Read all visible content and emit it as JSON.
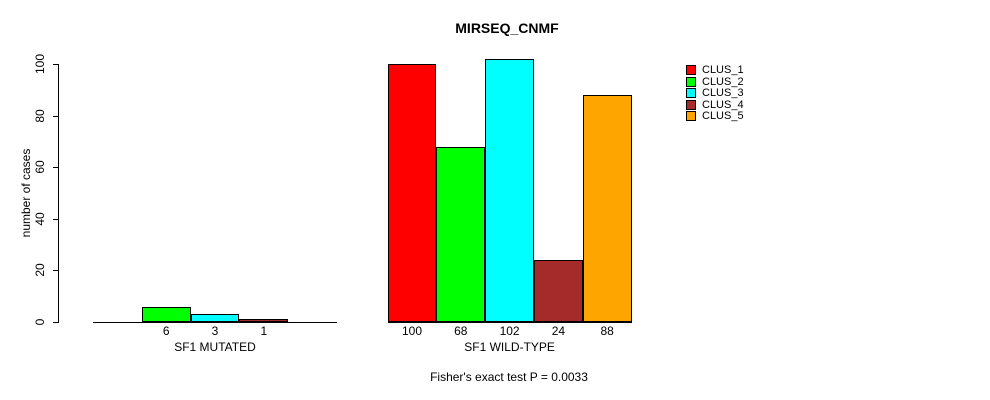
{
  "chart_data": {
    "type": "bar",
    "title": "MIRSEQ_CNMF",
    "ylabel": "number of cases",
    "xlabel": "",
    "ylim": [
      0,
      100
    ],
    "yticks": [
      0,
      20,
      40,
      60,
      80,
      100
    ],
    "grid": false,
    "legend_position": "right",
    "legend": [
      {
        "label": "CLUS_1",
        "color": "#FF0000"
      },
      {
        "label": "CLUS_2",
        "color": "#00FF00"
      },
      {
        "label": "CLUS_3",
        "color": "#00FFFF"
      },
      {
        "label": "CLUS_4",
        "color": "#A52A2A"
      },
      {
        "label": "CLUS_5",
        "color": "#FFA500"
      }
    ],
    "categories": [
      "CLUS_1",
      "CLUS_2",
      "CLUS_3",
      "CLUS_4",
      "CLUS_5"
    ],
    "groups": [
      {
        "label": "SF1 MUTATED",
        "values": [
          0,
          6,
          3,
          1,
          0
        ],
        "bar_labels": [
          "",
          "6",
          "3",
          "1",
          ""
        ]
      },
      {
        "label": "SF1 WILD-TYPE",
        "values": [
          100,
          68,
          102,
          24,
          88
        ],
        "bar_labels": [
          "100",
          "68",
          "102",
          "24",
          "88"
        ]
      }
    ],
    "footnote": "Fisher's exact test P = 0.0033"
  }
}
